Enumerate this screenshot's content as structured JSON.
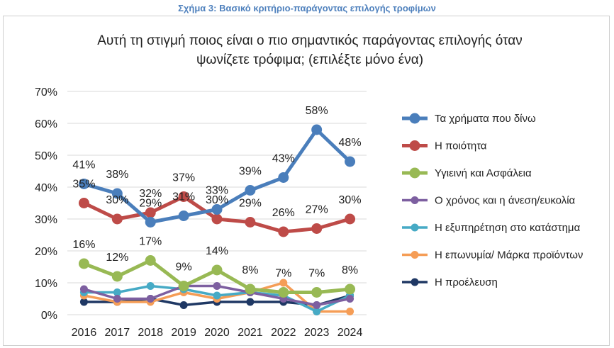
{
  "caption": "Σχήμα 3: Βασικό κριτήριο-παράγοντας επιλογής τροφίμων",
  "chart_data": {
    "type": "line",
    "title_lines": [
      "Αυτή τη στιγμή ποιος είναι ο πιο σημαντικός παράγοντας επιλογής όταν",
      "ψωνίζετε τρόφιμα; (επιλέξτε μόνο ένα)"
    ],
    "x": [
      "2016",
      "2017",
      "2018",
      "2019",
      "2020",
      "2021",
      "2022",
      "2023",
      "2024"
    ],
    "ylim": [
      0,
      70
    ],
    "yticks": [
      "0%",
      "10%",
      "20%",
      "30%",
      "40%",
      "50%",
      "60%",
      "70%"
    ],
    "grid": true,
    "legend_position": "right",
    "series": [
      {
        "name": "Τα χρήματα που δίνω",
        "color": "#4a7ebb",
        "values": [
          41,
          38,
          29,
          31,
          33,
          39,
          43,
          58,
          48
        ],
        "labels": [
          "41%",
          "38%",
          "29%",
          "31%",
          "33%",
          "39%",
          "43%",
          "58%",
          "48%"
        ]
      },
      {
        "name": "Η ποιότητα",
        "color": "#be4b48",
        "values": [
          35,
          30,
          32,
          37,
          30,
          29,
          26,
          27,
          30
        ],
        "labels": [
          "35%",
          "30%",
          "32%",
          "37%",
          "30%",
          "29%",
          "26%",
          "27%",
          "30%"
        ]
      },
      {
        "name": "Υγιεινή και Ασφάλεια",
        "color": "#98b954",
        "values": [
          16,
          12,
          17,
          9,
          14,
          8,
          7,
          7,
          8
        ],
        "labels": [
          "16%",
          "12%",
          "17%",
          "9%",
          "14%",
          "8%",
          "7%",
          "7%",
          "8%"
        ]
      },
      {
        "name": "Ο χρόνος και η άνεση/ευκολία",
        "color": "#7d5fa0",
        "values": [
          8,
          5,
          5,
          9,
          9,
          7,
          5,
          3,
          5
        ],
        "labels": []
      },
      {
        "name": "Η εξυπηρέτηση στο κατάστημα",
        "color": "#46aac5",
        "values": [
          7,
          7,
          9,
          8,
          6,
          7,
          6,
          1,
          6
        ],
        "labels": []
      },
      {
        "name": "Η επωνυμία/ Μάρκα προϊόντων",
        "color": "#f59d56",
        "values": [
          6,
          4,
          4,
          7,
          5,
          7,
          10,
          1,
          1
        ],
        "labels": []
      },
      {
        "name": "Η προέλευση",
        "color": "#1f3864",
        "values": [
          4,
          4,
          5,
          3,
          4,
          4,
          4,
          3,
          6
        ],
        "labels": []
      }
    ]
  }
}
